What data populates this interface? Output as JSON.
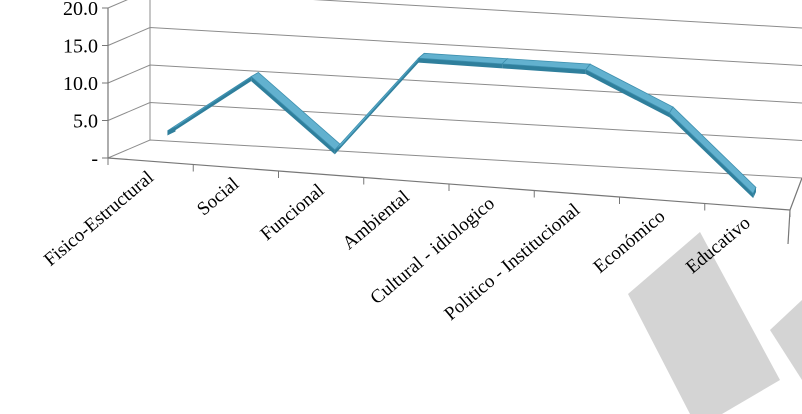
{
  "chart_data": {
    "type": "line",
    "title": "",
    "xlabel": "",
    "ylabel": "",
    "ylim": [
      0,
      20
    ],
    "y_ticks": [
      "-",
      "5.0",
      "10.0",
      "15.0",
      "20.0"
    ],
    "grid": true,
    "style": "3d-ribbon",
    "categories": [
      "Fisico-Estructural",
      "Social",
      "Funcional",
      "Ambiental",
      "Cultural - idiologico",
      "Politico - Institucional",
      "Económico",
      "Educativo"
    ],
    "series": [
      {
        "values": [
          3.0,
          11.0,
          2.0,
          15.0,
          15.0,
          15.0,
          10.0,
          0.0
        ]
      }
    ],
    "colors": {
      "line": "#4fa6c6",
      "shadow": "#2f7f9c",
      "grid": "#8c8c8c"
    }
  }
}
